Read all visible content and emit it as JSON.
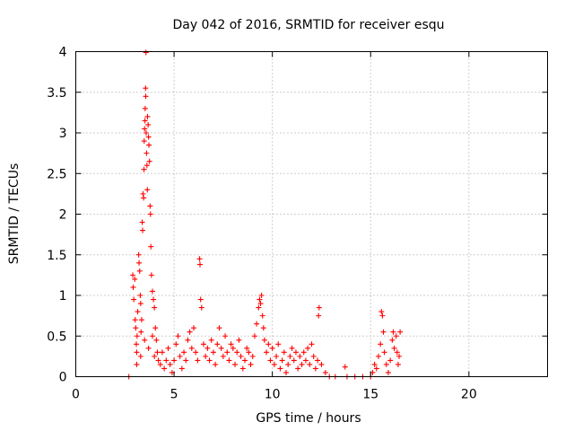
{
  "chart_data": {
    "type": "scatter",
    "title": "Day 042 of 2016, SRMTID for receiver esqu",
    "xlabel": "GPS time / hours",
    "ylabel": "SRMTID / TECUs",
    "xlim": [
      0,
      24
    ],
    "ylim": [
      0,
      4
    ],
    "x_ticks": [
      0,
      5,
      10,
      15,
      20
    ],
    "y_ticks": [
      0,
      0.5,
      1,
      1.5,
      2,
      2.5,
      3,
      3.5,
      4
    ],
    "x_tick_labels": [
      "0",
      "5",
      "10",
      "15",
      "20"
    ],
    "y_tick_labels": [
      "0",
      "0.5",
      "1",
      "1.5",
      "2",
      "2.5",
      "3",
      "3.5",
      "4"
    ],
    "grid": true,
    "marker": "plus",
    "series": [
      {
        "name": "SRMTID",
        "color": "#ff0000",
        "points": [
          [
            2.7,
            0.0
          ],
          [
            2.9,
            1.25
          ],
          [
            2.92,
            1.1
          ],
          [
            2.95,
            0.95
          ],
          [
            3.0,
            1.2
          ],
          [
            3.02,
            0.7
          ],
          [
            3.05,
            0.6
          ],
          [
            3.08,
            0.4
          ],
          [
            3.1,
            0.3
          ],
          [
            3.12,
            0.5
          ],
          [
            3.15,
            0.8
          ],
          [
            3.2,
            1.5
          ],
          [
            3.22,
            1.4
          ],
          [
            3.25,
            1.3
          ],
          [
            3.28,
            1.0
          ],
          [
            3.3,
            0.9
          ],
          [
            3.32,
            0.55
          ],
          [
            3.35,
            0.7
          ],
          [
            3.38,
            1.9
          ],
          [
            3.4,
            1.8
          ],
          [
            3.42,
            2.25
          ],
          [
            3.45,
            2.2
          ],
          [
            3.47,
            2.55
          ],
          [
            3.48,
            2.9
          ],
          [
            3.5,
            3.05
          ],
          [
            3.52,
            3.15
          ],
          [
            3.53,
            3.3
          ],
          [
            3.55,
            3.55
          ],
          [
            3.56,
            3.45
          ],
          [
            3.57,
            3.99
          ],
          [
            3.58,
            3.0
          ],
          [
            3.6,
            2.75
          ],
          [
            3.62,
            2.6
          ],
          [
            3.64,
            2.3
          ],
          [
            3.65,
            3.2
          ],
          [
            3.68,
            3.1
          ],
          [
            3.7,
            2.95
          ],
          [
            3.72,
            2.85
          ],
          [
            3.75,
            2.65
          ],
          [
            3.78,
            2.1
          ],
          [
            3.8,
            2.0
          ],
          [
            3.82,
            1.6
          ],
          [
            3.85,
            1.25
          ],
          [
            3.9,
            1.05
          ],
          [
            3.95,
            0.95
          ],
          [
            4.0,
            0.85
          ],
          [
            4.05,
            0.6
          ],
          [
            4.1,
            0.45
          ],
          [
            4.15,
            0.3
          ],
          [
            4.2,
            0.2
          ],
          [
            3.1,
            0.15
          ],
          [
            3.3,
            0.25
          ],
          [
            3.5,
            0.45
          ],
          [
            3.7,
            0.35
          ],
          [
            3.9,
            0.5
          ],
          [
            4.0,
            0.25
          ],
          [
            4.3,
            0.15
          ],
          [
            4.4,
            0.3
          ],
          [
            4.5,
            0.1
          ],
          [
            4.6,
            0.2
          ],
          [
            4.7,
            0.35
          ],
          [
            4.8,
            0.15
          ],
          [
            4.9,
            0.05
          ],
          [
            5.0,
            0.2
          ],
          [
            5.1,
            0.4
          ],
          [
            5.2,
            0.5
          ],
          [
            5.3,
            0.25
          ],
          [
            5.4,
            0.1
          ],
          [
            5.5,
            0.3
          ],
          [
            5.6,
            0.2
          ],
          [
            5.7,
            0.45
          ],
          [
            5.8,
            0.55
          ],
          [
            5.9,
            0.35
          ],
          [
            6.0,
            0.6
          ],
          [
            6.1,
            0.3
          ],
          [
            6.2,
            0.2
          ],
          [
            6.3,
            1.45
          ],
          [
            6.32,
            1.38
          ],
          [
            6.35,
            0.95
          ],
          [
            6.4,
            0.85
          ],
          [
            6.5,
            0.4
          ],
          [
            6.6,
            0.25
          ],
          [
            6.7,
            0.35
          ],
          [
            6.8,
            0.2
          ],
          [
            6.9,
            0.45
          ],
          [
            7.0,
            0.3
          ],
          [
            7.1,
            0.15
          ],
          [
            7.2,
            0.4
          ],
          [
            7.3,
            0.6
          ],
          [
            7.4,
            0.35
          ],
          [
            7.5,
            0.25
          ],
          [
            7.6,
            0.5
          ],
          [
            7.7,
            0.3
          ],
          [
            7.8,
            0.2
          ],
          [
            7.9,
            0.4
          ],
          [
            8.0,
            0.35
          ],
          [
            8.1,
            0.15
          ],
          [
            8.2,
            0.3
          ],
          [
            8.3,
            0.45
          ],
          [
            8.4,
            0.25
          ],
          [
            8.5,
            0.1
          ],
          [
            8.6,
            0.2
          ],
          [
            8.7,
            0.35
          ],
          [
            8.8,
            0.3
          ],
          [
            8.9,
            0.15
          ],
          [
            9.0,
            0.25
          ],
          [
            9.1,
            0.5
          ],
          [
            9.2,
            0.65
          ],
          [
            9.3,
            0.85
          ],
          [
            9.35,
            0.95
          ],
          [
            9.4,
            0.9
          ],
          [
            9.45,
            1.0
          ],
          [
            9.5,
            0.75
          ],
          [
            9.55,
            0.6
          ],
          [
            9.6,
            0.45
          ],
          [
            9.7,
            0.3
          ],
          [
            9.8,
            0.4
          ],
          [
            9.9,
            0.2
          ],
          [
            10.0,
            0.35
          ],
          [
            10.1,
            0.15
          ],
          [
            10.2,
            0.25
          ],
          [
            10.3,
            0.4
          ],
          [
            10.4,
            0.1
          ],
          [
            10.5,
            0.2
          ],
          [
            10.6,
            0.3
          ],
          [
            10.7,
            0.05
          ],
          [
            10.8,
            0.15
          ],
          [
            10.9,
            0.25
          ],
          [
            11.0,
            0.35
          ],
          [
            11.1,
            0.2
          ],
          [
            11.2,
            0.3
          ],
          [
            11.3,
            0.1
          ],
          [
            11.4,
            0.25
          ],
          [
            11.5,
            0.15
          ],
          [
            11.6,
            0.3
          ],
          [
            11.7,
            0.2
          ],
          [
            11.8,
            0.35
          ],
          [
            11.9,
            0.15
          ],
          [
            12.0,
            0.4
          ],
          [
            12.1,
            0.25
          ],
          [
            12.2,
            0.1
          ],
          [
            12.3,
            0.2
          ],
          [
            12.35,
            0.75
          ],
          [
            12.38,
            0.85
          ],
          [
            12.5,
            0.15
          ],
          [
            12.7,
            0.05
          ],
          [
            12.9,
            0.0
          ],
          [
            13.2,
            0.0
          ],
          [
            13.7,
            0.12
          ],
          [
            13.8,
            0.0
          ],
          [
            14.2,
            0.0
          ],
          [
            14.6,
            0.0
          ],
          [
            15.0,
            0.0
          ],
          [
            15.1,
            0.05
          ],
          [
            15.2,
            0.15
          ],
          [
            15.3,
            0.1
          ],
          [
            15.4,
            0.25
          ],
          [
            15.5,
            0.4
          ],
          [
            15.55,
            0.8
          ],
          [
            15.6,
            0.75
          ],
          [
            15.65,
            0.55
          ],
          [
            15.7,
            0.3
          ],
          [
            15.8,
            0.15
          ],
          [
            15.9,
            0.05
          ],
          [
            16.0,
            0.2
          ],
          [
            16.1,
            0.45
          ],
          [
            16.15,
            0.55
          ],
          [
            16.2,
            0.35
          ],
          [
            16.3,
            0.5
          ],
          [
            16.35,
            0.3
          ],
          [
            16.4,
            0.15
          ],
          [
            16.45,
            0.25
          ],
          [
            16.5,
            0.55
          ]
        ]
      }
    ]
  }
}
